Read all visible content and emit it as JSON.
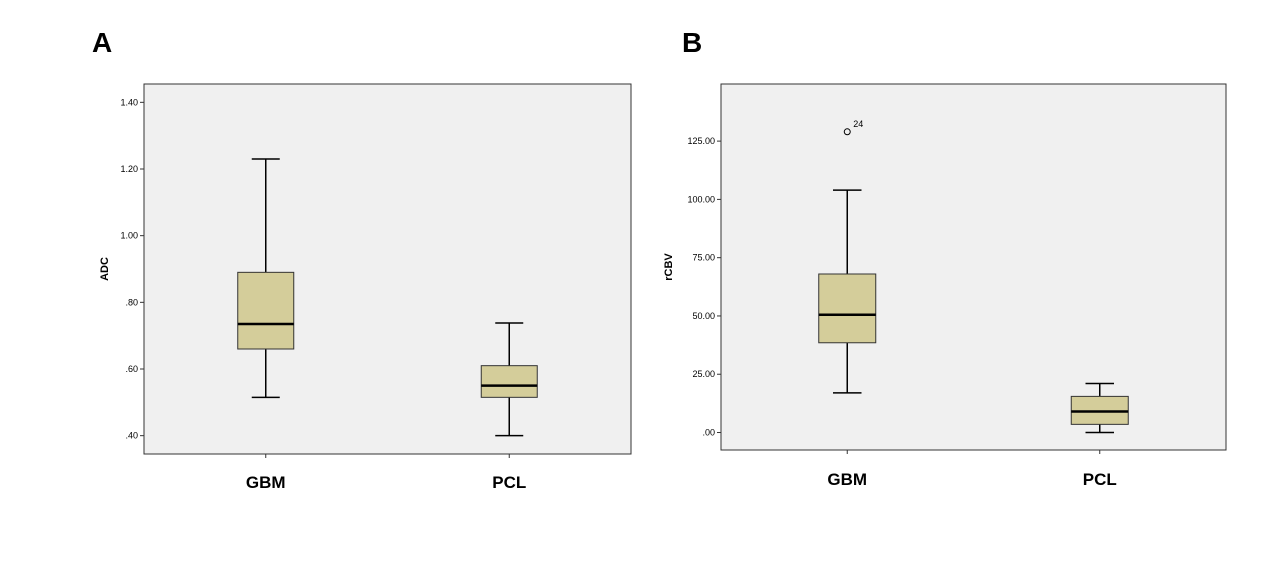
{
  "chart_data": [
    {
      "panel": "A",
      "type": "box",
      "ylabel": "ADC",
      "categories": [
        "GBM",
        "PCL"
      ],
      "yticks": [
        0.4,
        0.6,
        0.8,
        1.0,
        1.2,
        1.4
      ],
      "ytick_labels": [
        ".40",
        ".60",
        ".80",
        "1.00",
        "1.20",
        "1.40"
      ],
      "ylim": [
        0.345,
        1.455
      ],
      "box_color": "#d4cd9a",
      "plot_bg": "#f0f0f0",
      "boxes": [
        {
          "category": "GBM",
          "whisker_low": 0.515,
          "q1": 0.66,
          "median": 0.735,
          "q3": 0.89,
          "whisker_high": 1.23,
          "outliers": []
        },
        {
          "category": "PCL",
          "whisker_low": 0.4,
          "q1": 0.515,
          "median": 0.55,
          "q3": 0.61,
          "whisker_high": 0.738,
          "outliers": []
        }
      ]
    },
    {
      "panel": "B",
      "type": "box",
      "ylabel": "rCBV",
      "categories": [
        "GBM",
        "PCL"
      ],
      "yticks": [
        0,
        25,
        50,
        75,
        100,
        125
      ],
      "ytick_labels": [
        ".00",
        "25.00",
        "50.00",
        "75.00",
        "100.00",
        "125.00"
      ],
      "ylim": [
        -7.5,
        149.5
      ],
      "box_color": "#d4cd9a",
      "plot_bg": "#f0f0f0",
      "boxes": [
        {
          "category": "GBM",
          "whisker_low": 17,
          "q1": 38.5,
          "median": 50.5,
          "q3": 68,
          "whisker_high": 104,
          "outliers": [
            {
              "value": 129,
              "label": "24"
            }
          ]
        },
        {
          "category": "PCL",
          "whisker_low": 0,
          "q1": 3.5,
          "median": 9,
          "q3": 15.5,
          "whisker_high": 21,
          "outliers": []
        }
      ]
    }
  ]
}
